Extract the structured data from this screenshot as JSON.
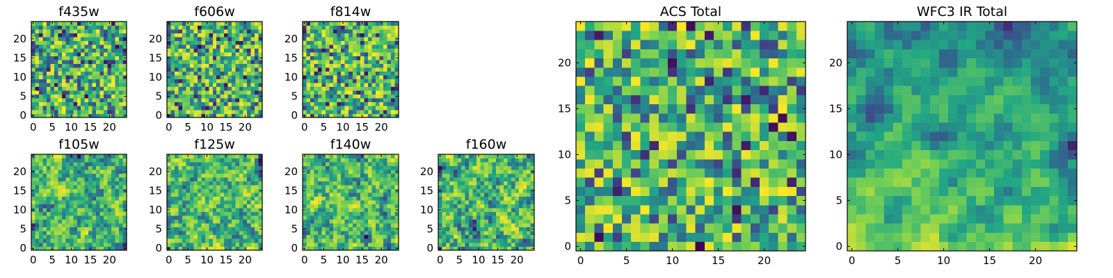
{
  "chart_data": [
    {
      "type": "heatmap",
      "title": "f435w",
      "grid_size": 25,
      "xlim": [
        -0.5,
        24.5
      ],
      "ylim": [
        -0.5,
        24.5
      ],
      "xticks": [
        0,
        5,
        10,
        15,
        20
      ],
      "yticks": [
        0,
        5,
        10,
        15,
        20
      ],
      "colormap": "viridis",
      "seed": 11,
      "smooth": 0
    },
    {
      "type": "heatmap",
      "title": "f606w",
      "grid_size": 25,
      "xlim": [
        -0.5,
        24.5
      ],
      "ylim": [
        -0.5,
        24.5
      ],
      "xticks": [
        0,
        5,
        10,
        15,
        20
      ],
      "yticks": [
        0,
        5,
        10,
        15,
        20
      ],
      "colormap": "viridis",
      "seed": 23,
      "smooth": 0
    },
    {
      "type": "heatmap",
      "title": "f814w",
      "grid_size": 25,
      "xlim": [
        -0.5,
        24.5
      ],
      "ylim": [
        -0.5,
        24.5
      ],
      "xticks": [
        0,
        5,
        10,
        15,
        20
      ],
      "yticks": [
        0,
        5,
        10,
        15,
        20
      ],
      "colormap": "viridis",
      "seed": 37,
      "smooth": 0
    },
    {
      "type": "heatmap",
      "title": "f105w",
      "grid_size": 25,
      "xlim": [
        -0.5,
        24.5
      ],
      "ylim": [
        -0.5,
        24.5
      ],
      "xticks": [
        0,
        5,
        10,
        15,
        20
      ],
      "yticks": [
        0,
        5,
        10,
        15,
        20
      ],
      "colormap": "viridis",
      "seed": 41,
      "smooth": 1
    },
    {
      "type": "heatmap",
      "title": "f125w",
      "grid_size": 25,
      "xlim": [
        -0.5,
        24.5
      ],
      "ylim": [
        -0.5,
        24.5
      ],
      "xticks": [
        0,
        5,
        10,
        15,
        20
      ],
      "yticks": [
        0,
        5,
        10,
        15,
        20
      ],
      "colormap": "viridis",
      "seed": 53,
      "smooth": 1
    },
    {
      "type": "heatmap",
      "title": "f140w",
      "grid_size": 25,
      "xlim": [
        -0.5,
        24.5
      ],
      "ylim": [
        -0.5,
        24.5
      ],
      "xticks": [
        0,
        5,
        10,
        15,
        20
      ],
      "yticks": [
        0,
        5,
        10,
        15,
        20
      ],
      "colormap": "viridis",
      "seed": 67,
      "smooth": 1
    },
    {
      "type": "heatmap",
      "title": "f160w",
      "grid_size": 25,
      "xlim": [
        -0.5,
        24.5
      ],
      "ylim": [
        -0.5,
        24.5
      ],
      "xticks": [
        0,
        5,
        10,
        15,
        20
      ],
      "yticks": [
        0,
        5,
        10,
        15,
        20
      ],
      "colormap": "viridis",
      "seed": 79,
      "smooth": 1
    },
    {
      "type": "heatmap",
      "title": "ACS Total",
      "grid_size": 25,
      "xlim": [
        -0.5,
        24.5
      ],
      "ylim": [
        -0.5,
        24.5
      ],
      "xticks": [
        0,
        5,
        10,
        15,
        20
      ],
      "yticks": [
        0,
        5,
        10,
        15,
        20
      ],
      "colormap": "viridis",
      "seed": 97,
      "smooth": 0
    },
    {
      "type": "heatmap",
      "title": "WFC3 IR Total",
      "grid_size": 25,
      "xlim": [
        -0.5,
        24.5
      ],
      "ylim": [
        -0.5,
        24.5
      ],
      "xticks": [
        0,
        5,
        10,
        15,
        20
      ],
      "yticks": [
        0,
        5,
        10,
        15,
        20
      ],
      "colormap": "viridis",
      "seed": 113,
      "smooth": 2,
      "gradient": "bright-bottom"
    }
  ],
  "colors": {
    "viridis_stops": [
      "#440154",
      "#414487",
      "#2a788e",
      "#22a884",
      "#7ad151",
      "#fde725"
    ]
  }
}
